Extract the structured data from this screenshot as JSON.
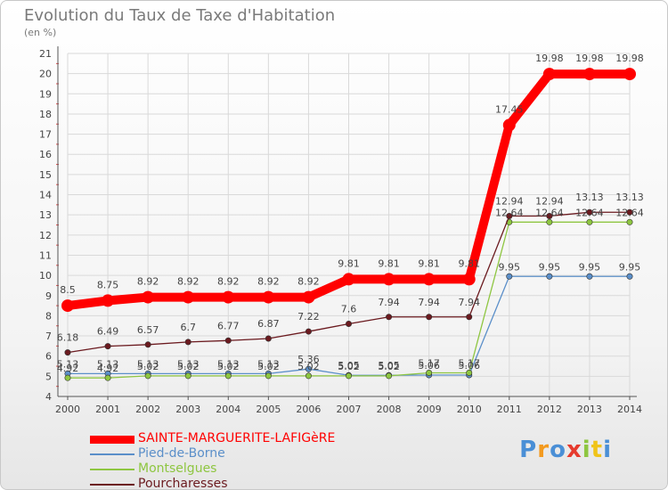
{
  "chart_data": {
    "type": "line",
    "title": "Evolution du Taux de Taxe d'Habitation",
    "ylabel": "(en %)",
    "xlabel": "",
    "ylim": [
      4,
      21
    ],
    "x": [
      "2000",
      "2001",
      "2002",
      "2003",
      "2004",
      "2005",
      "2006",
      "2007",
      "2008",
      "2009",
      "2010",
      "2011",
      "2012",
      "2013",
      "2014"
    ],
    "series": [
      {
        "name": "SAINTE-MARGUERITE-LAFIGèRE",
        "color": "#ff0000",
        "values": [
          8.5,
          8.75,
          8.92,
          8.92,
          8.92,
          8.92,
          8.92,
          9.81,
          9.81,
          9.81,
          9.81,
          17.45,
          19.98,
          19.98,
          19.98
        ],
        "labels": [
          "8.5",
          "8.75",
          "8.92",
          "8.92",
          "8.92",
          "8.92",
          "8.92",
          "9.81",
          "9.81",
          "9.81",
          "9.81",
          "17.45",
          "19.98",
          "19.98",
          "19.98"
        ]
      },
      {
        "name": "Pied-de-Borne",
        "color": "#5b8fc9",
        "values": [
          5.13,
          5.13,
          5.13,
          5.13,
          5.13,
          5.13,
          5.36,
          5.05,
          5.05,
          5.06,
          5.06,
          9.95,
          9.95,
          9.95,
          9.95
        ],
        "labels": [
          "5.13",
          "5.13",
          "5.13",
          "5.13",
          "5.13",
          "5.13",
          "5.36",
          "5.05",
          "5.05",
          "5.06",
          "5.06",
          "9.95",
          "9.95",
          "9.95",
          "9.95"
        ]
      },
      {
        "name": "Montselgues",
        "color": "#8ec641",
        "values": [
          4.92,
          4.92,
          5.02,
          5.02,
          5.02,
          5.02,
          5.02,
          5.02,
          5.02,
          5.17,
          5.17,
          12.64,
          12.64,
          12.64,
          12.64
        ],
        "labels": [
          "4.92",
          "4.92",
          "5.02",
          "5.02",
          "5.02",
          "5.02",
          "5.02",
          "5.02",
          "5.02",
          "5.17",
          "5.17",
          "12.64",
          "12.64",
          "12.64",
          "12.64"
        ]
      },
      {
        "name": "Pourcharesses",
        "color": "#6b1a1f",
        "values": [
          6.18,
          6.49,
          6.57,
          6.7,
          6.77,
          6.87,
          7.22,
          7.6,
          7.94,
          7.94,
          7.94,
          12.94,
          12.94,
          13.13,
          13.13
        ],
        "labels": [
          "6.18",
          "6.49",
          "6.57",
          "6.7",
          "6.77",
          "6.87",
          "7.22",
          "7.6",
          "7.94",
          "7.94",
          "7.94",
          "12.94",
          "12.94",
          "13.13",
          "13.13"
        ]
      }
    ],
    "yticks": [
      "4",
      "5",
      "6",
      "7",
      "8",
      "9",
      "10",
      "11",
      "12",
      "13",
      "14",
      "15",
      "16",
      "17",
      "18",
      "19",
      "20",
      "21"
    ],
    "legend_position": "bottom-left"
  },
  "logo": {
    "letters": [
      "P",
      "r",
      "o",
      "x",
      "i",
      "t",
      "i"
    ],
    "colors": [
      "#4a8fd6",
      "#f39a1f",
      "#4a8fd6",
      "#e63b2e",
      "#8ec641",
      "#f0c419",
      "#4a8fd6"
    ]
  },
  "colors": {
    "axis": "#555555",
    "grid": "#d9d9d9",
    "text": "#444444",
    "minor_tick": "#e05050"
  }
}
